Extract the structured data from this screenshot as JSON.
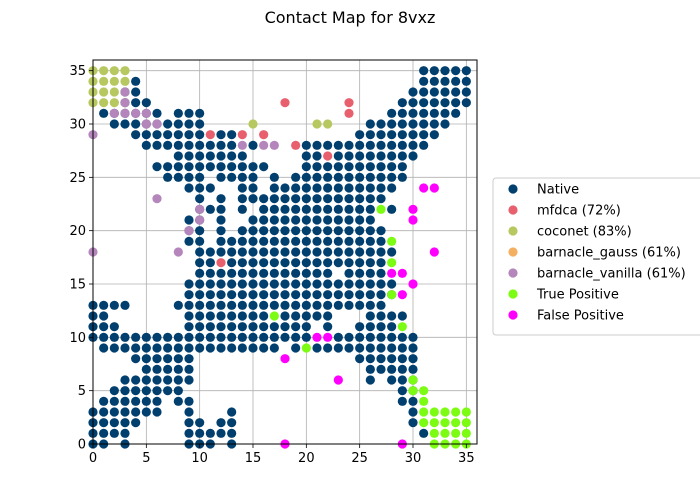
{
  "chart_data": {
    "type": "scatter",
    "title": "Contact Map for 8vxz",
    "xlabel": "",
    "ylabel": "",
    "xlim": [
      0,
      36
    ],
    "ylim": [
      0,
      36
    ],
    "xticks": [
      0,
      5,
      10,
      15,
      20,
      25,
      30,
      35
    ],
    "yticks": [
      0,
      5,
      10,
      15,
      20,
      25,
      30,
      35
    ],
    "grid": true,
    "legend_position": "right",
    "series": [
      {
        "name": "Native",
        "color": "#003f6e",
        "rows": [
          {
            "y": 35,
            "x": [
              31,
              32,
              33,
              34,
              35
            ]
          },
          {
            "y": 34,
            "x": [
              4,
              31,
              32,
              33,
              34,
              35
            ]
          },
          {
            "y": 33,
            "x": [
              3,
              4,
              30,
              31,
              32,
              33,
              34,
              35
            ]
          },
          {
            "y": 32,
            "x": [
              3,
              4,
              5,
              29,
              30,
              31,
              32,
              33,
              34,
              35
            ]
          },
          {
            "y": 31,
            "x": [
              1,
              2,
              3,
              4,
              5,
              6,
              8,
              9,
              10,
              28,
              29,
              30,
              31,
              32,
              33,
              34
            ]
          },
          {
            "y": 30,
            "x": [
              2,
              3,
              4,
              5,
              6,
              7,
              8,
              9,
              10,
              26,
              27,
              28,
              29,
              30,
              31,
              32,
              33
            ]
          },
          {
            "y": 29,
            "x": [
              4,
              5,
              6,
              7,
              8,
              9,
              10,
              12,
              13,
              25,
              26,
              27,
              28,
              29,
              30,
              31,
              32
            ]
          },
          {
            "y": 28,
            "x": [
              5,
              6,
              7,
              8,
              9,
              10,
              11,
              12,
              13,
              15,
              20,
              21,
              22,
              23,
              24,
              25,
              26,
              27,
              28,
              29,
              30,
              31
            ]
          },
          {
            "y": 27,
            "x": [
              8,
              9,
              10,
              11,
              12,
              13,
              14,
              20,
              21,
              23,
              24,
              25,
              26,
              27,
              28,
              29,
              30
            ]
          },
          {
            "y": 26,
            "x": [
              6,
              7,
              8,
              9,
              10,
              11,
              12,
              13,
              14,
              15,
              16,
              20,
              21,
              22,
              23,
              24,
              25,
              26,
              27,
              28,
              29
            ]
          },
          {
            "y": 25,
            "x": [
              7,
              8,
              9,
              10,
              12,
              13,
              14,
              15,
              17,
              19,
              20,
              21,
              22,
              23,
              24,
              25,
              26,
              27,
              28,
              29
            ]
          },
          {
            "y": 24,
            "x": [
              9,
              10,
              11,
              14,
              15,
              17,
              18,
              19,
              20,
              21,
              22,
              23,
              24,
              25,
              26,
              27,
              28
            ]
          },
          {
            "y": 23,
            "x": [
              10,
              12,
              14,
              15,
              16,
              17,
              18,
              19,
              20,
              21,
              22,
              23,
              24,
              25,
              26,
              27
            ]
          },
          {
            "y": 22,
            "x": [
              10,
              11,
              12,
              14,
              16,
              17,
              18,
              19,
              20,
              21,
              22,
              23,
              24,
              25,
              26,
              28
            ]
          },
          {
            "y": 21,
            "x": [
              9,
              10,
              12,
              15,
              16,
              17,
              18,
              19,
              20,
              21,
              22,
              23,
              24,
              25,
              26
            ]
          },
          {
            "y": 20,
            "x": [
              9,
              10,
              12,
              14,
              15,
              16,
              17,
              18,
              19,
              20,
              21,
              22,
              23,
              24,
              25,
              26,
              27
            ]
          },
          {
            "y": 19,
            "x": [
              9,
              10,
              12,
              13,
              14,
              15,
              16,
              17,
              18,
              19,
              20,
              21,
              22,
              23,
              24,
              25,
              26,
              27
            ]
          },
          {
            "y": 18,
            "x": [
              10,
              11,
              12,
              13,
              14,
              15,
              16,
              17,
              18,
              19,
              20,
              21,
              22,
              23,
              24,
              25,
              26,
              27,
              28
            ]
          },
          {
            "y": 17,
            "x": [
              10,
              11,
              13,
              14,
              15,
              16,
              17,
              18,
              19,
              20,
              21,
              22,
              23,
              24,
              25,
              26,
              27
            ]
          },
          {
            "y": 16,
            "x": [
              10,
              11,
              12,
              13,
              14,
              15,
              16,
              17,
              18,
              19,
              20,
              21,
              22,
              24,
              25,
              26,
              27
            ]
          },
          {
            "y": 15,
            "x": [
              9,
              10,
              11,
              12,
              13,
              14,
              15,
              16,
              17,
              18,
              19,
              20,
              21,
              22,
              23,
              24,
              25,
              26,
              27,
              28
            ]
          },
          {
            "y": 14,
            "x": [
              9,
              10,
              11,
              12,
              13,
              14,
              15,
              16,
              17,
              18,
              19,
              20,
              21,
              22,
              23,
              24,
              25,
              26,
              27,
              28
            ]
          },
          {
            "y": 13,
            "x": [
              0,
              1,
              2,
              3,
              8,
              9,
              10,
              11,
              12,
              13,
              14,
              15,
              16,
              17,
              18,
              19,
              20,
              21,
              22,
              23,
              24,
              25,
              26,
              27
            ]
          },
          {
            "y": 12,
            "x": [
              0,
              1,
              9,
              10,
              11,
              12,
              13,
              14,
              15,
              16,
              18,
              19,
              20,
              21,
              22,
              26,
              27,
              28,
              29
            ]
          },
          {
            "y": 11,
            "x": [
              0,
              1,
              2,
              9,
              10,
              11,
              12,
              13,
              14,
              15,
              16,
              17,
              18,
              19,
              20,
              22,
              25,
              26,
              27,
              28
            ]
          },
          {
            "y": 10,
            "x": [
              0,
              1,
              2,
              3,
              4,
              5,
              6,
              7,
              8,
              9,
              10,
              11,
              12,
              13,
              14,
              15,
              16,
              17,
              18,
              19,
              20,
              23,
              24,
              25,
              26,
              27,
              28,
              29,
              30
            ]
          },
          {
            "y": 9,
            "x": [
              1,
              2,
              3,
              4,
              5,
              6,
              7,
              8,
              9,
              10,
              11,
              12,
              13,
              14,
              15,
              16,
              17,
              19,
              21,
              22,
              23,
              24,
              25,
              26,
              27,
              28,
              29,
              30
            ]
          },
          {
            "y": 8,
            "x": [
              4,
              5,
              6,
              7,
              8,
              9,
              25,
              26,
              27,
              28,
              29,
              30
            ]
          },
          {
            "y": 7,
            "x": [
              5,
              6,
              7,
              8,
              9,
              26,
              27,
              28,
              29,
              30
            ]
          },
          {
            "y": 6,
            "x": [
              3,
              4,
              5,
              6,
              7,
              8,
              9,
              26,
              28,
              29,
              30
            ]
          },
          {
            "y": 5,
            "x": [
              2,
              3,
              4,
              5,
              6,
              7,
              8,
              29,
              30
            ]
          },
          {
            "y": 4,
            "x": [
              1,
              2,
              3,
              4,
              5,
              6,
              8,
              9,
              29,
              30
            ]
          },
          {
            "y": 3,
            "x": [
              0,
              1,
              2,
              3,
              4,
              5,
              6,
              9,
              13,
              30
            ]
          },
          {
            "y": 2,
            "x": [
              0,
              1,
              2,
              3,
              4,
              9,
              10,
              12,
              13,
              30
            ]
          },
          {
            "y": 1,
            "x": [
              0,
              1,
              2,
              3,
              9,
              10,
              11,
              12,
              13,
              31
            ]
          },
          {
            "y": 0,
            "x": [
              0,
              1,
              3,
              9,
              10,
              11,
              13
            ]
          }
        ]
      },
      {
        "name": "mfdca (72%)",
        "color": "#e8606e",
        "points": [
          [
            18,
            32
          ],
          [
            24,
            32
          ],
          [
            24,
            31
          ],
          [
            11,
            29
          ],
          [
            14,
            29
          ],
          [
            16,
            29
          ],
          [
            19,
            28
          ],
          [
            22,
            27
          ],
          [
            12,
            17
          ]
        ]
      },
      {
        "name": "coconet (83%)",
        "color": "#b8c860",
        "points": [
          [
            0,
            35
          ],
          [
            1,
            35
          ],
          [
            2,
            35
          ],
          [
            3,
            35
          ],
          [
            0,
            34
          ],
          [
            1,
            34
          ],
          [
            2,
            34
          ],
          [
            3,
            34
          ],
          [
            0,
            33
          ],
          [
            1,
            33
          ],
          [
            2,
            33
          ],
          [
            3,
            33
          ],
          [
            0,
            32
          ],
          [
            1,
            32
          ],
          [
            2,
            32
          ],
          [
            3,
            32
          ],
          [
            15,
            30
          ],
          [
            21,
            30
          ],
          [
            22,
            30
          ]
        ]
      },
      {
        "name": "barnacle_gauss (61%)",
        "color": "#f4b060",
        "points": []
      },
      {
        "name": "barnacle_vanilla (61%)",
        "color": "#b486bc",
        "points": [
          [
            3,
            33
          ],
          [
            3,
            32
          ],
          [
            2,
            31
          ],
          [
            3,
            31
          ],
          [
            4,
            31
          ],
          [
            5,
            31
          ],
          [
            6,
            30
          ],
          [
            5,
            30
          ],
          [
            0,
            29
          ],
          [
            14,
            28
          ],
          [
            16,
            28
          ],
          [
            17,
            28
          ],
          [
            6,
            23
          ],
          [
            10,
            22
          ],
          [
            10,
            21
          ],
          [
            9,
            20
          ],
          [
            0,
            18
          ],
          [
            8,
            18
          ]
        ]
      },
      {
        "name": "True Positive",
        "color": "#7cfc12",
        "points": [
          [
            27,
            22
          ],
          [
            28,
            19
          ],
          [
            28,
            17
          ],
          [
            28,
            14
          ],
          [
            29,
            11
          ],
          [
            17,
            12
          ],
          [
            20,
            9
          ],
          [
            30,
            6
          ],
          [
            30,
            5
          ],
          [
            31,
            5
          ],
          [
            31,
            4
          ],
          [
            31,
            3
          ],
          [
            32,
            3
          ],
          [
            33,
            3
          ],
          [
            34,
            3
          ],
          [
            35,
            3
          ],
          [
            31,
            2
          ],
          [
            32,
            2
          ],
          [
            33,
            2
          ],
          [
            34,
            2
          ],
          [
            35,
            2
          ],
          [
            32,
            1
          ],
          [
            33,
            1
          ],
          [
            34,
            1
          ],
          [
            35,
            1
          ],
          [
            32,
            0
          ],
          [
            33,
            0
          ],
          [
            34,
            0
          ],
          [
            35,
            0
          ]
        ]
      },
      {
        "name": "False Positive",
        "color": "#ff00ff",
        "points": [
          [
            31,
            24
          ],
          [
            32,
            24
          ],
          [
            30,
            22
          ],
          [
            30,
            21
          ],
          [
            32,
            18
          ],
          [
            28,
            16
          ],
          [
            29,
            16
          ],
          [
            30,
            15
          ],
          [
            29,
            14
          ],
          [
            21,
            10
          ],
          [
            22,
            10
          ],
          [
            18,
            8
          ],
          [
            23,
            6
          ],
          [
            18,
            0
          ],
          [
            29,
            0
          ]
        ]
      }
    ]
  }
}
